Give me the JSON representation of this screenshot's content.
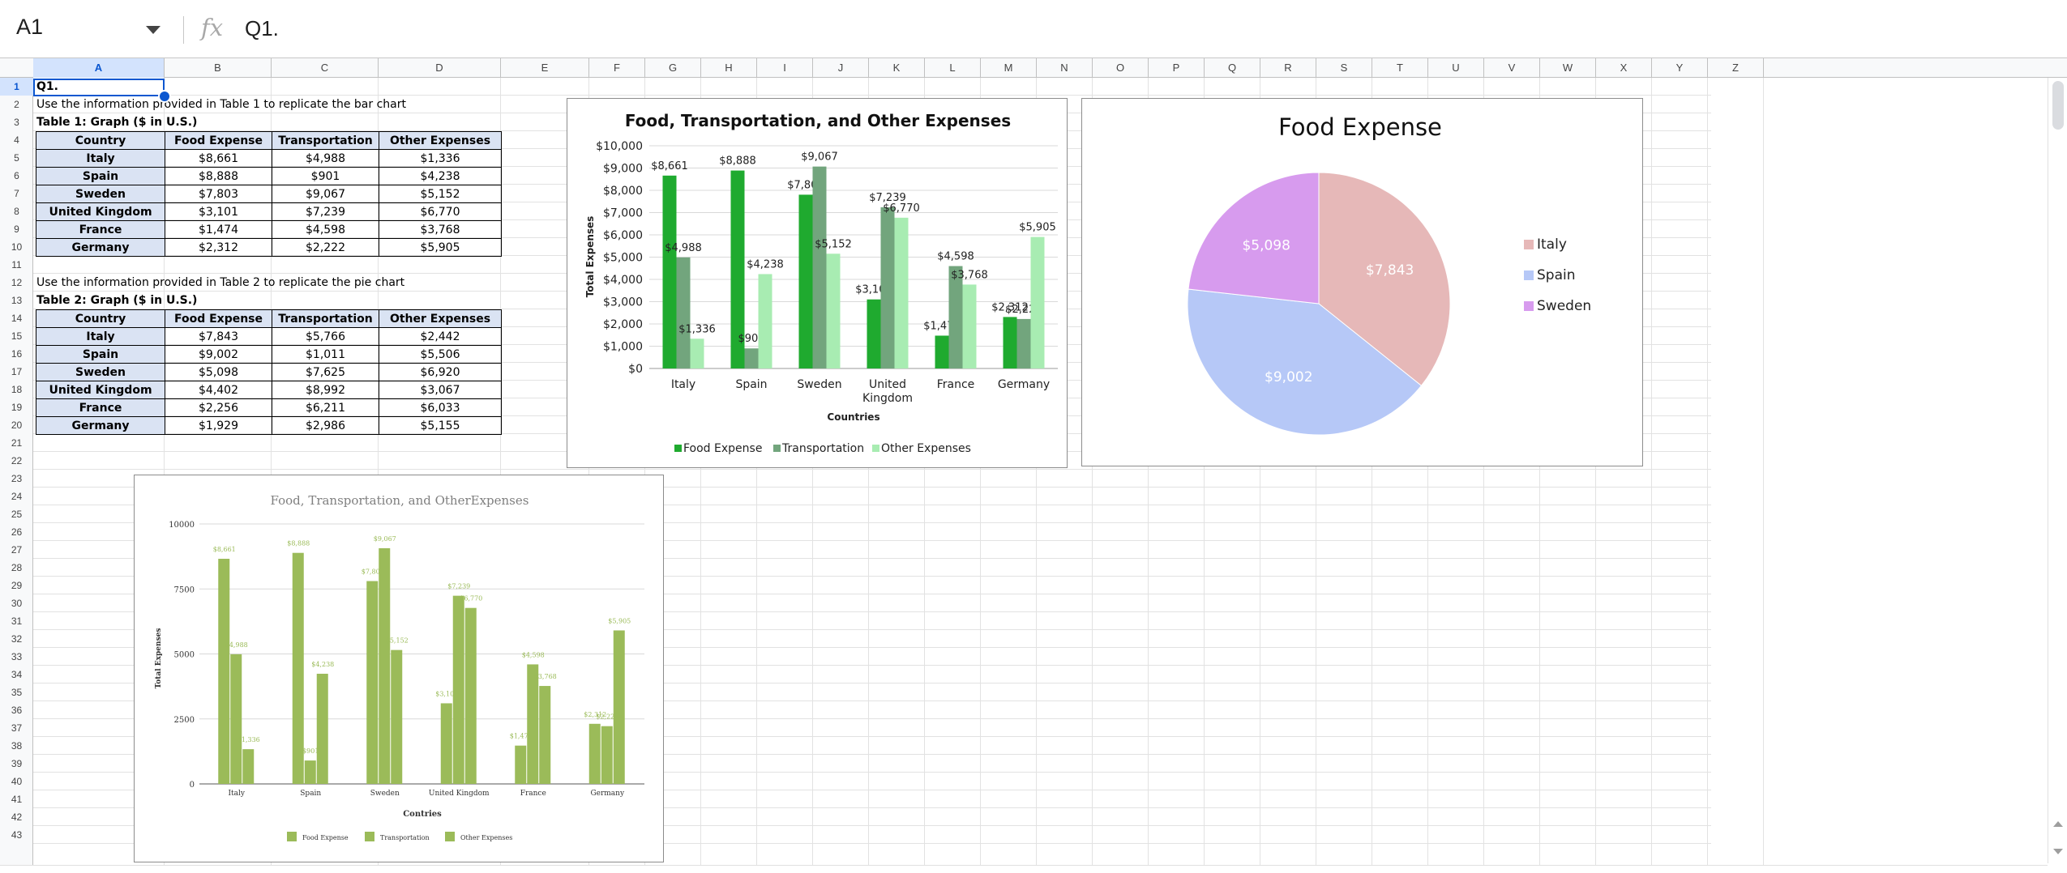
{
  "formula_bar": {
    "name_box": "A1",
    "formula": "Q1."
  },
  "columns": [
    "A",
    "B",
    "C",
    "D",
    "E",
    "F",
    "G",
    "H",
    "I",
    "J",
    "K",
    "L",
    "M",
    "N",
    "O",
    "P",
    "Q",
    "R",
    "S",
    "T",
    "U",
    "V",
    "W",
    "X",
    "Y",
    "Z"
  ],
  "rows": [
    "1",
    "2",
    "3",
    "4",
    "5",
    "6",
    "7",
    "8",
    "9",
    "10",
    "11",
    "12",
    "13",
    "14",
    "15",
    "16",
    "17",
    "18",
    "19",
    "20",
    "21",
    "22",
    "23",
    "24",
    "25",
    "26",
    "27",
    "28",
    "29",
    "30",
    "31",
    "32",
    "33",
    "34",
    "35",
    "36",
    "37",
    "38",
    "39",
    "40",
    "41",
    "42",
    "43"
  ],
  "sheet": {
    "a1": "Q1.",
    "a2": "Use the information provided in Table 1 to replicate the bar chart",
    "a3": "Table 1: Graph ($ in U.S.)",
    "a12": "Use the information provided in Table 2 to replicate the pie chart",
    "a13": "Table 2: Graph ($ in U.S.)"
  },
  "table1": {
    "headers": [
      "Country",
      "Food Expense",
      "Transportation",
      "Other Expenses"
    ],
    "rows": [
      [
        "Italy",
        "$8,661",
        "$4,988",
        "$1,336"
      ],
      [
        "Spain",
        "$8,888",
        "$901",
        "$4,238"
      ],
      [
        "Sweden",
        "$7,803",
        "$9,067",
        "$5,152"
      ],
      [
        "United Kingdom",
        "$3,101",
        "$7,239",
        "$6,770"
      ],
      [
        "France",
        "$1,474",
        "$4,598",
        "$3,768"
      ],
      [
        "Germany",
        "$2,312",
        "$2,222",
        "$5,905"
      ]
    ]
  },
  "table2": {
    "headers": [
      "Country",
      "Food Expense",
      "Transportation",
      "Other Expenses"
    ],
    "rows": [
      [
        "Italy",
        "$7,843",
        "$5,766",
        "$2,442"
      ],
      [
        "Spain",
        "$9,002",
        "$1,011",
        "$5,506"
      ],
      [
        "Sweden",
        "$5,098",
        "$7,625",
        "$6,920"
      ],
      [
        "United Kingdom",
        "$4,402",
        "$8,992",
        "$3,067"
      ],
      [
        "France",
        "$2,256",
        "$6,211",
        "$6,033"
      ],
      [
        "Germany",
        "$1,929",
        "$2,986",
        "$5,155"
      ]
    ]
  },
  "chart_data": [
    {
      "type": "bar",
      "title": "Food, Transportation, and Other Expenses",
      "xlabel": "Countries",
      "ylabel": "Total Expenses",
      "categories": [
        "Italy",
        "Spain",
        "Sweden",
        "United Kingdom",
        "France",
        "Germany"
      ],
      "category_labels": [
        [
          "Italy"
        ],
        [
          "Spain"
        ],
        [
          "Sweden"
        ],
        [
          "United",
          "Kingdom"
        ],
        [
          "France"
        ],
        [
          "Germany"
        ]
      ],
      "ylim": [
        0,
        10000
      ],
      "yticks": [
        "$0",
        "$1,000",
        "$2,000",
        "$3,000",
        "$4,000",
        "$5,000",
        "$6,000",
        "$7,000",
        "$8,000",
        "$9,000",
        "$10,000"
      ],
      "legend_position": "bottom",
      "grid": true,
      "series": [
        {
          "name": "Food Expense",
          "color": "#1faa2f",
          "values": [
            8661,
            8888,
            7803,
            3101,
            1474,
            2312
          ],
          "labels": [
            "$8,661",
            "$8,888",
            "$7,803",
            "$3,101",
            "$1,474",
            "$2,312"
          ]
        },
        {
          "name": "Transportation",
          "color": "#72a57d",
          "values": [
            4988,
            901,
            9067,
            7239,
            4598,
            2222
          ],
          "labels": [
            "$4,988",
            "$901",
            "$9,067",
            "$7,239",
            "$4,598",
            "$2,222"
          ]
        },
        {
          "name": "Other Expenses",
          "color": "#a8ecb2",
          "values": [
            1336,
            4238,
            5152,
            6770,
            3768,
            5905
          ],
          "labels": [
            "$1,336",
            "$4,238",
            "$5,152",
            "$6,770",
            "$3,768",
            "$5,905"
          ]
        }
      ]
    },
    {
      "type": "pie",
      "title": "Food Expense",
      "legend_position": "right",
      "slices": [
        {
          "name": "Italy",
          "value": 7843,
          "label": "$7,843",
          "color": "#e6b8b8"
        },
        {
          "name": "Spain",
          "value": 9002,
          "label": "$9,002",
          "color": "#b6c8f7"
        },
        {
          "name": "Sweden",
          "value": 5098,
          "label": "$5,098",
          "color": "#d79bee"
        }
      ]
    },
    {
      "type": "bar",
      "title": "Food, Transportation, and OtherExpenses",
      "xlabel": "Contries",
      "ylabel": "Total Expenses",
      "categories": [
        "Italy",
        "Spain",
        "Sweden",
        "United Kingdom",
        "France",
        "Germany"
      ],
      "ylim": [
        0,
        10000
      ],
      "yticks": [
        "0",
        "2500",
        "5000",
        "7500",
        "10000"
      ],
      "legend_position": "bottom",
      "grid": true,
      "series": [
        {
          "name": "Food Expense",
          "color": "#9bbb59",
          "values": [
            8661,
            8888,
            7803,
            3101,
            1474,
            2312
          ],
          "labels": [
            "$8,661",
            "$8,888",
            "$7,803",
            "$3,101",
            "$1,474",
            "$2,312"
          ]
        },
        {
          "name": "Transportation",
          "color": "#9bbb59",
          "values": [
            4988,
            901,
            9067,
            7239,
            4598,
            2222
          ],
          "labels": [
            "$4,988",
            "$901",
            "$9,067",
            "$7,239",
            "$4,598",
            "$2,222"
          ]
        },
        {
          "name": "Other Expenses",
          "color": "#9bbb59",
          "values": [
            1336,
            4238,
            5152,
            6770,
            3768,
            5905
          ],
          "labels": [
            "$1,336",
            "$4,238",
            "$5,152",
            "$6,770",
            "$3,768",
            "$5,905"
          ]
        }
      ]
    }
  ]
}
